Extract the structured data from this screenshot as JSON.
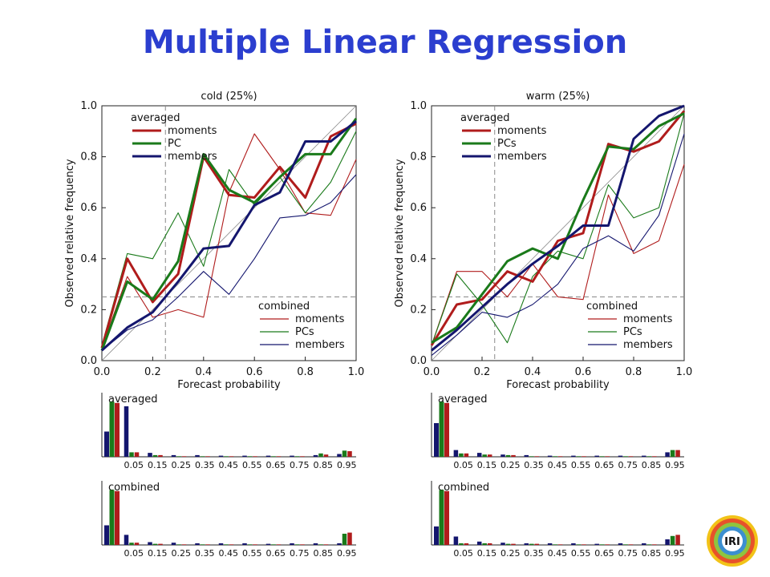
{
  "slide": {
    "title": "Multiple Linear Regression"
  },
  "logo": {
    "text": "IRI"
  },
  "colors": {
    "title": "#2b3ecf",
    "moments": "#b01c1c",
    "pcs": "#1a7a1a",
    "members": "#14166e",
    "ref": "#888888"
  },
  "chart_data": [
    {
      "type": "line",
      "title": "cold (25%)",
      "xlabel": "Forecast probability",
      "ylabel": "Observed relative frequency",
      "xlim": [
        0,
        1
      ],
      "ylim": [
        0,
        1
      ],
      "xticks": [
        "0.0",
        "0.2",
        "0.4",
        "0.6",
        "0.8",
        "1.0"
      ],
      "yticks": [
        "0.0",
        "0.2",
        "0.4",
        "0.6",
        "0.8",
        "1.0"
      ],
      "reference_lines": {
        "x": 0.25,
        "y": 0.25
      },
      "x": [
        0.0,
        0.1,
        0.2,
        0.3,
        0.4,
        0.5,
        0.6,
        0.7,
        0.8,
        0.9,
        1.0
      ],
      "legend_top": {
        "title": "averaged",
        "entries": [
          "moments",
          "PC",
          "members"
        ]
      },
      "legend_bottom": {
        "title": "combined",
        "entries": [
          "moments",
          "PCs",
          "members"
        ]
      },
      "series": [
        {
          "name": "moments",
          "group": "averaged",
          "values": [
            0.05,
            0.4,
            0.23,
            0.34,
            0.8,
            0.65,
            0.64,
            0.76,
            0.64,
            0.88,
            0.93
          ]
        },
        {
          "name": "PC",
          "group": "averaged",
          "values": [
            0.04,
            0.31,
            0.24,
            0.39,
            0.81,
            0.67,
            0.62,
            0.72,
            0.81,
            0.81,
            0.95
          ]
        },
        {
          "name": "members",
          "group": "averaged",
          "values": [
            0.04,
            0.13,
            0.19,
            0.31,
            0.44,
            0.45,
            0.61,
            0.66,
            0.86,
            0.86,
            0.94
          ]
        },
        {
          "name": "moments",
          "group": "combined",
          "values": [
            0.05,
            0.33,
            0.17,
            0.2,
            0.17,
            0.66,
            0.89,
            0.75,
            0.58,
            0.57,
            0.79
          ]
        },
        {
          "name": "PCs",
          "group": "combined",
          "values": [
            0.06,
            0.42,
            0.4,
            0.58,
            0.37,
            0.75,
            0.61,
            0.72,
            0.58,
            0.7,
            0.9
          ]
        },
        {
          "name": "members",
          "group": "combined",
          "values": [
            0.04,
            0.12,
            0.16,
            0.25,
            0.35,
            0.26,
            0.4,
            0.56,
            0.57,
            0.62,
            0.73
          ]
        }
      ]
    },
    {
      "type": "line",
      "title": "warm (25%)",
      "xlabel": "Forecast probability",
      "ylabel": "Observed relative frequency",
      "xlim": [
        0,
        1
      ],
      "ylim": [
        0,
        1
      ],
      "xticks": [
        "0.0",
        "0.2",
        "0.4",
        "0.6",
        "0.8",
        "1.0"
      ],
      "yticks": [
        "0.0",
        "0.2",
        "0.4",
        "0.6",
        "0.8",
        "1.0"
      ],
      "reference_lines": {
        "x": 0.25,
        "y": 0.25
      },
      "x": [
        0.0,
        0.1,
        0.2,
        0.3,
        0.4,
        0.5,
        0.6,
        0.7,
        0.8,
        0.9,
        1.0
      ],
      "legend_top": {
        "title": "averaged",
        "entries": [
          "moments",
          "PCs",
          "members"
        ]
      },
      "legend_bottom": {
        "title": "combined",
        "entries": [
          "moments",
          "PCs",
          "members"
        ]
      },
      "series": [
        {
          "name": "moments",
          "group": "averaged",
          "values": [
            0.06,
            0.22,
            0.24,
            0.35,
            0.31,
            0.47,
            0.5,
            0.85,
            0.82,
            0.86,
            0.98
          ]
        },
        {
          "name": "PCs",
          "group": "averaged",
          "values": [
            0.07,
            0.13,
            0.26,
            0.39,
            0.44,
            0.4,
            0.63,
            0.84,
            0.83,
            0.92,
            0.97
          ]
        },
        {
          "name": "members",
          "group": "averaged",
          "values": [
            0.04,
            0.12,
            0.21,
            0.3,
            0.38,
            0.45,
            0.53,
            0.53,
            0.87,
            0.96,
            1.0
          ]
        },
        {
          "name": "moments",
          "group": "combined",
          "values": [
            0.06,
            0.35,
            0.35,
            0.25,
            0.38,
            0.25,
            0.24,
            0.65,
            0.42,
            0.47,
            0.77
          ]
        },
        {
          "name": "PCs",
          "group": "combined",
          "values": [
            0.06,
            0.34,
            0.22,
            0.07,
            0.33,
            0.43,
            0.4,
            0.69,
            0.56,
            0.6,
            0.97
          ]
        },
        {
          "name": "members",
          "group": "combined",
          "values": [
            0.02,
            0.1,
            0.19,
            0.17,
            0.22,
            0.3,
            0.44,
            0.49,
            0.43,
            0.57,
            0.89
          ]
        }
      ]
    },
    {
      "type": "bar",
      "title": "averaged",
      "panel": "cold",
      "categories": [
        "0.05",
        "0.15",
        "0.25",
        "0.35",
        "0.45",
        "0.55",
        "0.65",
        "0.75",
        "0.85",
        "0.95"
      ],
      "ylim": [
        0,
        1
      ],
      "series": [
        {
          "name": "members",
          "values": [
            0.9,
            0.07,
            0.03,
            0.03,
            0.02,
            0.02,
            0.02,
            0.02,
            0.03,
            0.05
          ]
        },
        {
          "name": "PCs",
          "values": [
            0.08,
            0.03,
            0.01,
            0.01,
            0.01,
            0.01,
            0.01,
            0.01,
            0.06,
            0.11
          ]
        },
        {
          "name": "moments",
          "values": [
            0.08,
            0.03,
            0.01,
            0.01,
            0.01,
            0.01,
            0.01,
            0.01,
            0.04,
            0.1
          ]
        }
      ],
      "leading": [
        0.45,
        0.98,
        0.96
      ]
    },
    {
      "type": "bar",
      "title": "combined",
      "panel": "cold",
      "categories": [
        "0.05",
        "0.15",
        "0.25",
        "0.35",
        "0.45",
        "0.55",
        "0.65",
        "0.75",
        "0.85",
        "0.95"
      ],
      "ylim": [
        0,
        1
      ],
      "series": [
        {
          "name": "members",
          "values": [
            0.18,
            0.05,
            0.04,
            0.03,
            0.03,
            0.03,
            0.02,
            0.03,
            0.03,
            0.03
          ]
        },
        {
          "name": "PCs",
          "values": [
            0.04,
            0.02,
            0.01,
            0.01,
            0.01,
            0.01,
            0.01,
            0.01,
            0.01,
            0.2
          ]
        },
        {
          "name": "moments",
          "values": [
            0.04,
            0.02,
            0.01,
            0.01,
            0.01,
            0.01,
            0.01,
            0.01,
            0.01,
            0.22
          ]
        }
      ],
      "leading": [
        0.35,
        0.98,
        0.96
      ]
    },
    {
      "type": "bar",
      "title": "averaged",
      "panel": "warm",
      "categories": [
        "0.05",
        "0.15",
        "0.25",
        "0.35",
        "0.45",
        "0.55",
        "0.65",
        "0.75",
        "0.85",
        "0.95"
      ],
      "ylim": [
        0,
        1
      ],
      "series": [
        {
          "name": "members",
          "values": [
            0.12,
            0.07,
            0.04,
            0.03,
            0.02,
            0.02,
            0.02,
            0.02,
            0.02,
            0.08
          ]
        },
        {
          "name": "PCs",
          "values": [
            0.06,
            0.04,
            0.03,
            0.01,
            0.01,
            0.01,
            0.01,
            0.01,
            0.01,
            0.12
          ]
        },
        {
          "name": "moments",
          "values": [
            0.06,
            0.04,
            0.03,
            0.01,
            0.01,
            0.01,
            0.01,
            0.01,
            0.01,
            0.12
          ]
        }
      ],
      "leading": [
        0.6,
        0.98,
        0.96
      ]
    },
    {
      "type": "bar",
      "title": "combined",
      "panel": "warm",
      "categories": [
        "0.05",
        "0.15",
        "0.25",
        "0.35",
        "0.45",
        "0.55",
        "0.65",
        "0.75",
        "0.85",
        "0.95"
      ],
      "ylim": [
        0,
        1
      ],
      "series": [
        {
          "name": "members",
          "values": [
            0.15,
            0.06,
            0.04,
            0.03,
            0.03,
            0.03,
            0.02,
            0.03,
            0.03,
            0.1
          ]
        },
        {
          "name": "PCs",
          "values": [
            0.03,
            0.03,
            0.02,
            0.02,
            0.01,
            0.01,
            0.01,
            0.01,
            0.01,
            0.16
          ]
        },
        {
          "name": "moments",
          "values": [
            0.03,
            0.03,
            0.02,
            0.02,
            0.01,
            0.01,
            0.01,
            0.01,
            0.01,
            0.18
          ]
        }
      ],
      "leading": [
        0.33,
        0.98,
        0.96
      ]
    }
  ]
}
